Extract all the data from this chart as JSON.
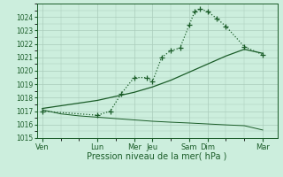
{
  "xlabel": "Pression niveau de la mer( hPa )",
  "background_color": "#cceedd",
  "grid_color": "#aaccbb",
  "line_color": "#1a5c28",
  "ylim": [
    1015,
    1025
  ],
  "yticks": [
    1015,
    1016,
    1017,
    1018,
    1019,
    1020,
    1021,
    1022,
    1023,
    1024
  ],
  "x_labels": [
    "Ven",
    "Lun",
    "Mer",
    "Jeu",
    "Sam",
    "Dim",
    "Mar"
  ],
  "x_positions": [
    0,
    3,
    5,
    6,
    8,
    9,
    12
  ],
  "xlim": [
    -0.3,
    12.8
  ],
  "line1_x": [
    0,
    3,
    3.7,
    4.3,
    5.0,
    5.7,
    6.0,
    6.5,
    7.0,
    7.5,
    8.0,
    8.3,
    8.6,
    9.0,
    9.5,
    10.0,
    11.0,
    12.0
  ],
  "line1_y": [
    1017.0,
    1016.7,
    1017.0,
    1018.3,
    1019.5,
    1019.5,
    1019.2,
    1021.0,
    1021.5,
    1021.7,
    1023.4,
    1024.4,
    1024.6,
    1024.4,
    1023.9,
    1023.3,
    1021.8,
    1021.2
  ],
  "line2_x": [
    0,
    1,
    2,
    3,
    4,
    5,
    6,
    7,
    8,
    9,
    10,
    11,
    12
  ],
  "line2_y": [
    1017.1,
    1016.8,
    1016.65,
    1016.55,
    1016.45,
    1016.35,
    1016.25,
    1016.18,
    1016.12,
    1016.05,
    1015.98,
    1015.92,
    1015.6
  ],
  "line3_x": [
    0,
    1,
    2,
    3,
    4,
    5,
    6,
    7,
    8,
    9,
    10,
    11,
    12
  ],
  "line3_y": [
    1017.2,
    1017.4,
    1017.6,
    1017.8,
    1018.1,
    1018.4,
    1018.8,
    1019.3,
    1019.9,
    1020.5,
    1021.1,
    1021.6,
    1021.3
  ],
  "ytick_fontsize": 5.5,
  "xtick_fontsize": 6,
  "xlabel_fontsize": 7
}
